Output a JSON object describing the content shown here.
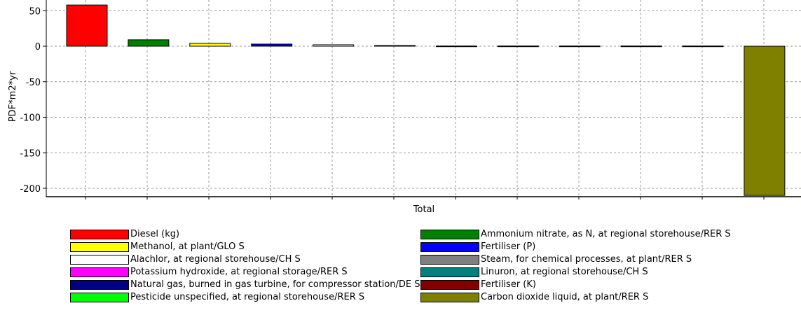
{
  "chart_data": {
    "type": "bar",
    "categories": [
      "Total"
    ],
    "xlabel": "Total",
    "ylabel": "PDF*m2*yr",
    "ylim": [
      -210,
      60
    ],
    "yticks": [
      50,
      0,
      -50,
      -100,
      -150,
      -200
    ],
    "grid": true,
    "legend_position": "bottom",
    "series": [
      {
        "name": "Diesel (kg)",
        "value": 58,
        "color": "#ff0000"
      },
      {
        "name": "Ammonium nitrate, as N, at regional storehouse/RER S",
        "value": 9,
        "color": "#008000"
      },
      {
        "name": "Methanol, at plant/GLO S",
        "value": 4,
        "color": "#ffff00"
      },
      {
        "name": "Fertiliser (P)",
        "value": 3,
        "color": "#0000ff"
      },
      {
        "name": "Alachlor, at regional storehouse/CH S",
        "value": 2,
        "color": "#ffffff"
      },
      {
        "name": "Steam, for chemical processes, at plant/RER S",
        "value": 1,
        "color": "#808080"
      },
      {
        "name": "Potassium hydroxide, at regional storage/RER S",
        "value": 0.3,
        "color": "#ff00ff"
      },
      {
        "name": "Linuron, at regional storehouse/CH S",
        "value": 0.3,
        "color": "#008080"
      },
      {
        "name": "Natural gas, burned in gas turbine, for compressor station/DE S",
        "value": 0.3,
        "color": "#000080"
      },
      {
        "name": "Fertiliser (K)",
        "value": 0.3,
        "color": "#800000"
      },
      {
        "name": "Pesticide unspecified, at regional storehouse/RER S",
        "value": 0.3,
        "color": "#00ff00"
      },
      {
        "name": "Carbon dioxide liquid, at plant/RER S",
        "value": -210,
        "color": "#808000"
      }
    ]
  },
  "legend": {
    "left": [
      {
        "label": "Diesel (kg)",
        "color": "#ff0000"
      },
      {
        "label": "Methanol, at plant/GLO S",
        "color": "#ffff00"
      },
      {
        "label": "Alachlor, at regional storehouse/CH S",
        "color": "#ffffff"
      },
      {
        "label": "Potassium hydroxide, at regional storage/RER S",
        "color": "#ff00ff"
      },
      {
        "label": "Natural gas, burned in gas turbine, for compressor station/DE S",
        "color": "#000080"
      },
      {
        "label": "Pesticide unspecified, at regional storehouse/RER S",
        "color": "#00ff00"
      }
    ],
    "right": [
      {
        "label": "Ammonium nitrate, as N, at regional storehouse/RER S",
        "color": "#008000"
      },
      {
        "label": "Fertiliser (P)",
        "color": "#0000ff"
      },
      {
        "label": "Steam, for chemical processes, at plant/RER S",
        "color": "#808080"
      },
      {
        "label": "Linuron, at regional storehouse/CH S",
        "color": "#008080"
      },
      {
        "label": "Fertiliser (K)",
        "color": "#800000"
      },
      {
        "label": "Carbon dioxide liquid, at plant/RER S",
        "color": "#808000"
      }
    ]
  }
}
